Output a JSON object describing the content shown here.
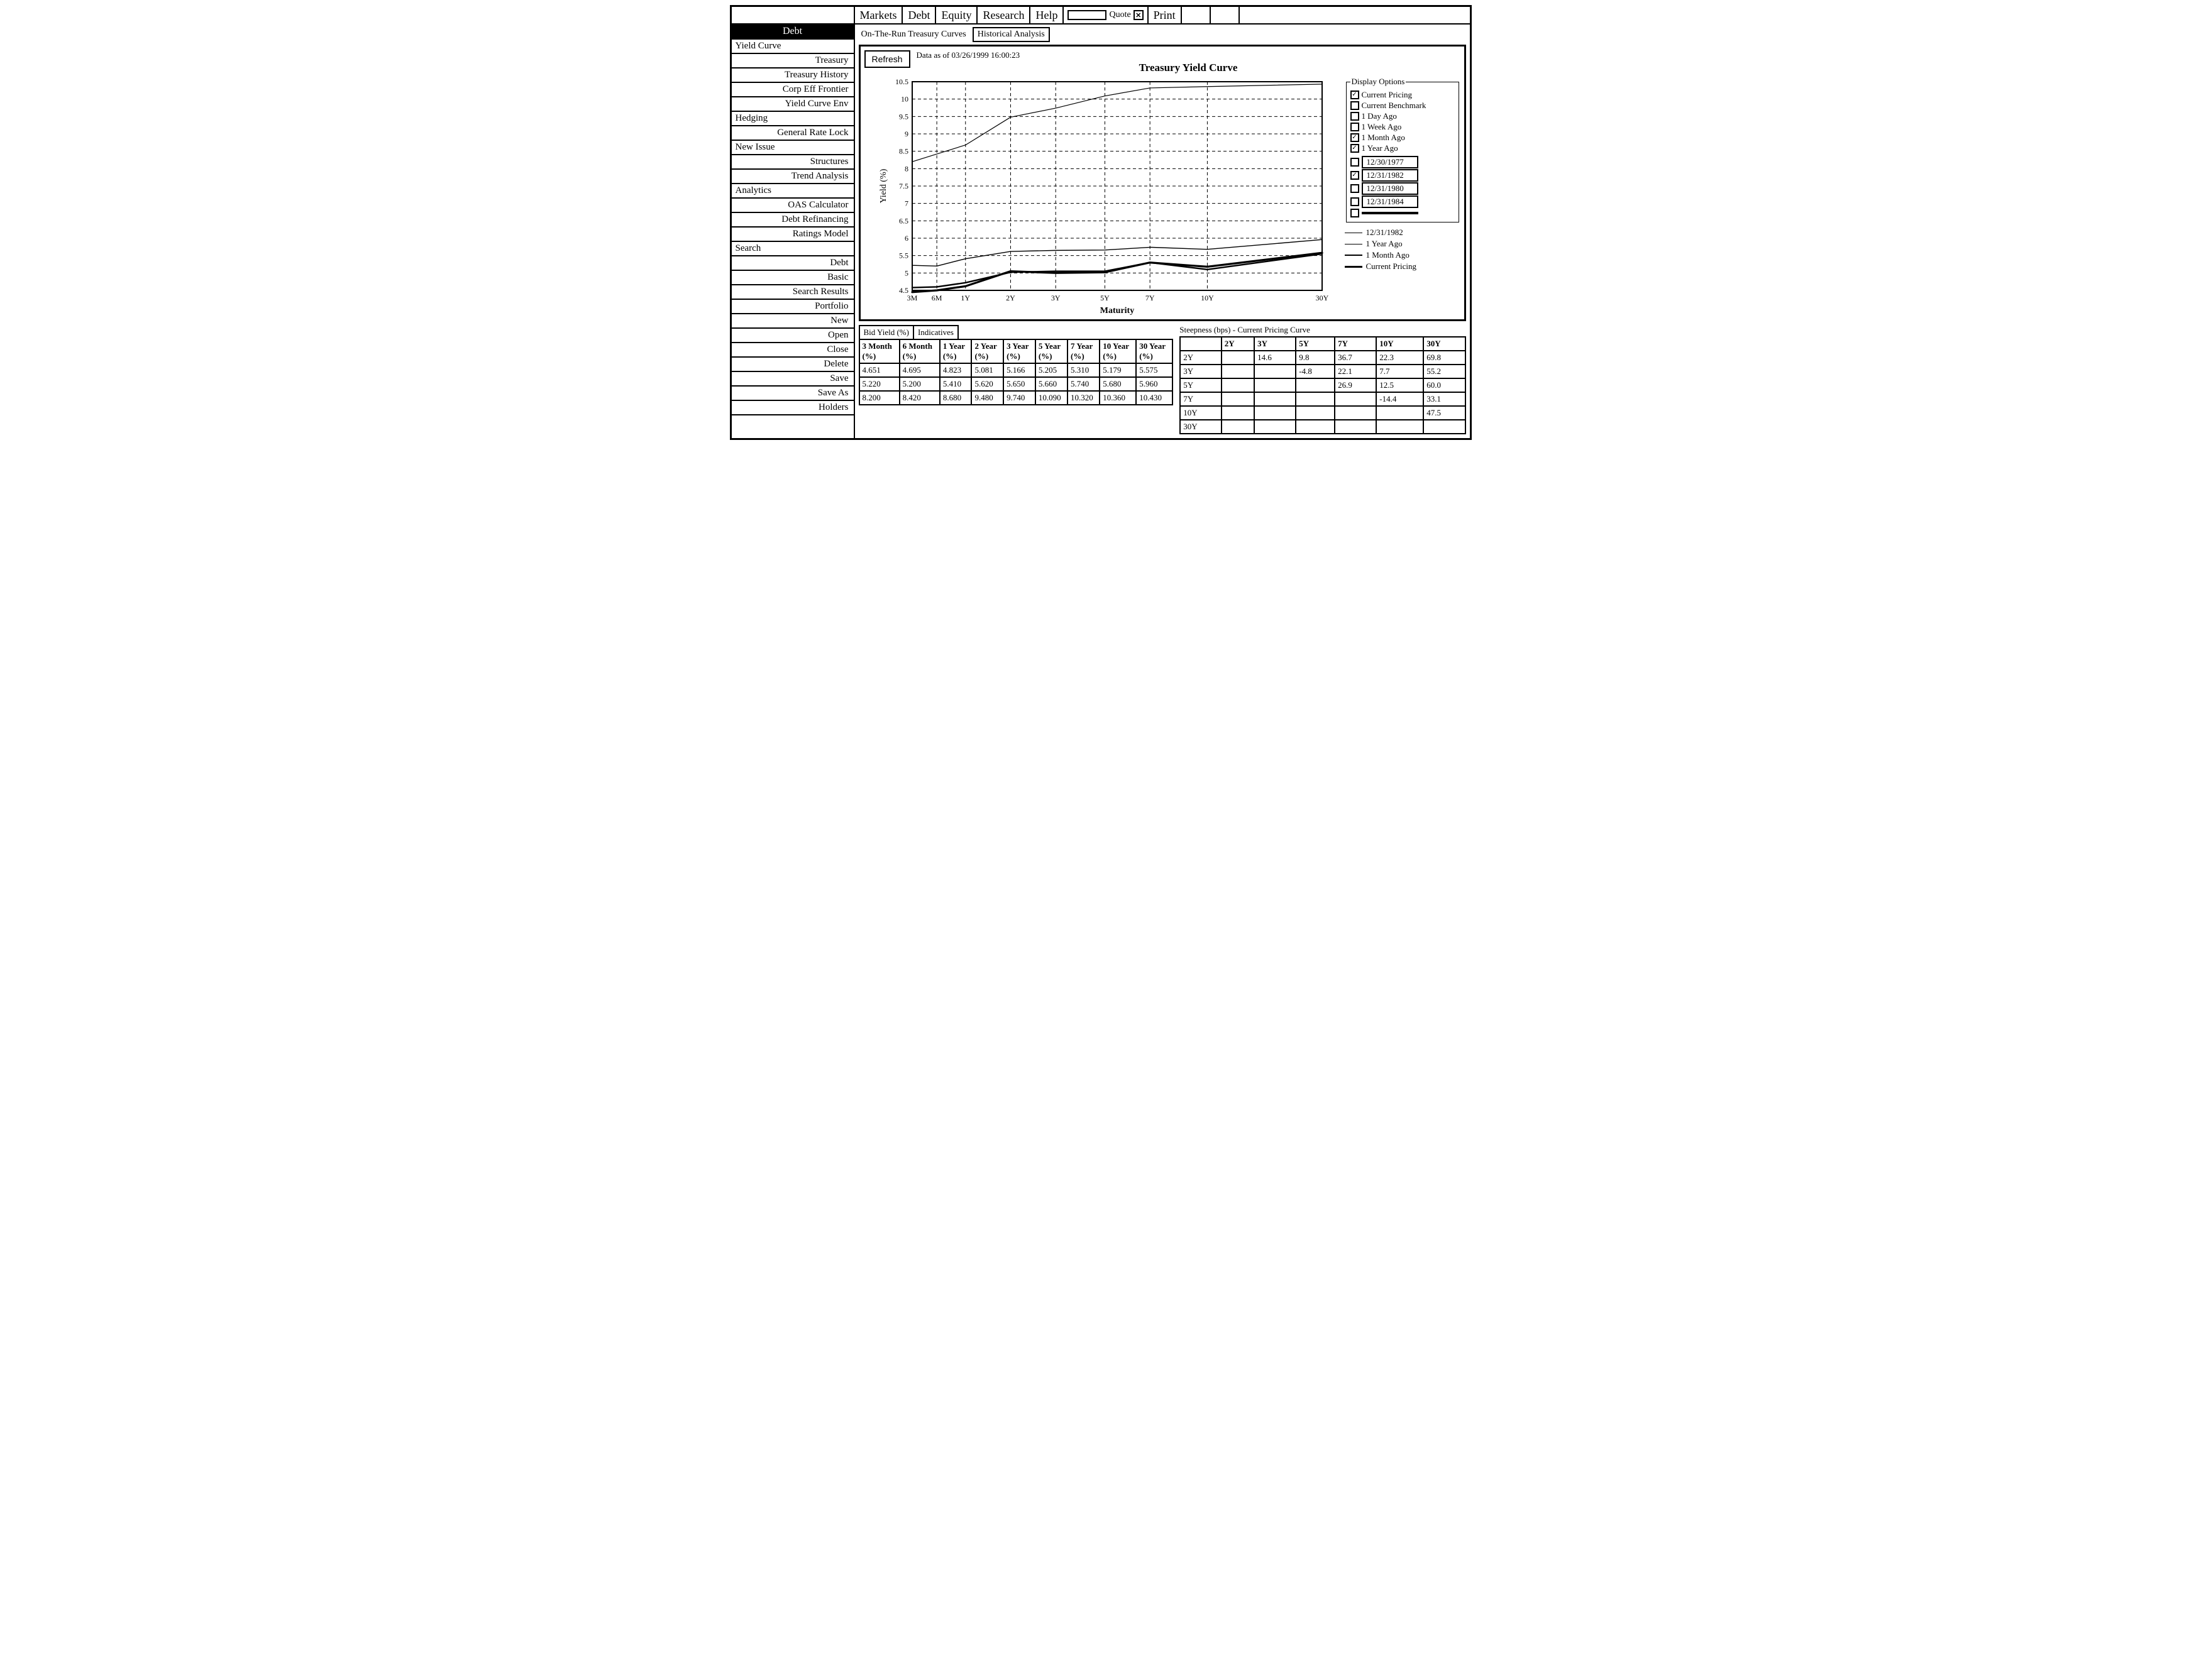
{
  "menubar": {
    "items": [
      "Markets",
      "Debt",
      "Equity",
      "Research",
      "Help"
    ],
    "quote_label": "Quote",
    "print_label": "Print"
  },
  "sidebar": {
    "title": "Debt",
    "entries": [
      {
        "type": "group",
        "label": "Yield Curve"
      },
      {
        "type": "item",
        "label": "Treasury"
      },
      {
        "type": "item",
        "label": "Treasury History"
      },
      {
        "type": "item",
        "label": "Corp Eff Frontier"
      },
      {
        "type": "item",
        "label": "Yield Curve Env"
      },
      {
        "type": "group",
        "label": "Hedging"
      },
      {
        "type": "item",
        "label": "General Rate Lock"
      },
      {
        "type": "group",
        "label": "New Issue"
      },
      {
        "type": "item",
        "label": "Structures"
      },
      {
        "type": "item",
        "label": "Trend Analysis"
      },
      {
        "type": "group",
        "label": "Analytics"
      },
      {
        "type": "item",
        "label": "OAS Calculator"
      },
      {
        "type": "item",
        "label": "Debt Refinancing"
      },
      {
        "type": "item",
        "label": "Ratings Model"
      },
      {
        "type": "group",
        "label": "Search"
      },
      {
        "type": "item",
        "label": "Debt"
      },
      {
        "type": "item",
        "label": "Basic"
      },
      {
        "type": "item",
        "label": "Search Results"
      },
      {
        "type": "item",
        "label": "Portfolio"
      },
      {
        "type": "item",
        "label": "New"
      },
      {
        "type": "item",
        "label": "Open"
      },
      {
        "type": "item",
        "label": "Close"
      },
      {
        "type": "item",
        "label": "Delete"
      },
      {
        "type": "item",
        "label": "Save"
      },
      {
        "type": "item",
        "label": "Save As"
      },
      {
        "type": "item",
        "label": "Holders"
      }
    ]
  },
  "subtabs": {
    "active": "On-The-Run Treasury Curves",
    "secondary": "Historical Analysis"
  },
  "chart": {
    "refresh_label": "Refresh",
    "as_of": "Data as of 03/26/1999  16:00:23",
    "title": "Treasury Yield Curve",
    "y_label": "Yield (%)",
    "x_label": "Maturity",
    "y_ticks": [
      10.5,
      10,
      9.5,
      9,
      8.5,
      8,
      7.5,
      7,
      6.5,
      6,
      5.5,
      5,
      4.5
    ],
    "y_min": 4.5,
    "y_max": 10.5,
    "x_ticks": [
      "3M",
      "6M",
      "1Y",
      "2Y",
      "3Y",
      "5Y",
      "7Y",
      "10Y",
      "30Y"
    ],
    "x_positions": [
      0,
      0.06,
      0.13,
      0.24,
      0.35,
      0.47,
      0.58,
      0.72,
      1.0
    ],
    "series": [
      {
        "name": "12/31/1982",
        "width": 1.2,
        "y": [
          8.2,
          8.42,
          8.68,
          9.48,
          9.74,
          10.09,
          10.32,
          10.36,
          10.43
        ]
      },
      {
        "name": "1 Year Ago",
        "width": 1.4,
        "y": [
          5.22,
          5.2,
          5.41,
          5.62,
          5.65,
          5.66,
          5.74,
          5.68,
          5.96
        ]
      },
      {
        "name": "1 Month Ago",
        "width": 2.4,
        "y": [
          4.58,
          4.6,
          4.72,
          5.02,
          5.05,
          5.05,
          5.3,
          5.1,
          5.55
        ]
      },
      {
        "name": "Current Pricing",
        "width": 3.2,
        "y": [
          4.45,
          4.5,
          4.62,
          5.05,
          5.0,
          5.02,
          5.3,
          5.18,
          5.58
        ]
      }
    ],
    "grid_color": "#000000",
    "bg_color": "#ffffff",
    "line_color": "#000000"
  },
  "display_options": {
    "title": "Display Options",
    "checks": [
      {
        "label": "Current Pricing",
        "checked": true
      },
      {
        "label": "Current Benchmark",
        "checked": false
      },
      {
        "label": "1 Day Ago",
        "checked": false
      },
      {
        "label": "1 Week Ago",
        "checked": false
      },
      {
        "label": "1 Month Ago",
        "checked": true
      },
      {
        "label": "1 Year Ago",
        "checked": true
      }
    ],
    "dates": [
      {
        "label": "12/30/1977",
        "checked": false
      },
      {
        "label": "12/31/1982",
        "checked": true
      },
      {
        "label": "12/31/1980",
        "checked": false
      },
      {
        "label": "12/31/1984",
        "checked": false
      },
      {
        "label": "",
        "checked": false
      }
    ],
    "legend": [
      {
        "label": "12/31/1982",
        "width": 1.2
      },
      {
        "label": "1 Year Ago",
        "width": 1.4
      },
      {
        "label": "1 Month Ago",
        "width": 2.4
      },
      {
        "label": "Current Pricing",
        "width": 3.2
      }
    ]
  },
  "bid_table": {
    "tab1": "Bid Yield (%)",
    "tab2": "Indicatives",
    "columns": [
      "3 Month (%)",
      "6 Month (%)",
      "1 Year (%)",
      "2 Year (%)",
      "3 Year (%)",
      "5 Year (%)",
      "7 Year (%)",
      "10 Year (%)",
      "30 Year (%)"
    ],
    "rows": [
      [
        "4.651",
        "4.695",
        "4.823",
        "5.081",
        "5.166",
        "5.205",
        "5.310",
        "5.179",
        "5.575"
      ],
      [
        "5.220",
        "5.200",
        "5.410",
        "5.620",
        "5.650",
        "5.660",
        "5.740",
        "5.680",
        "5.960"
      ],
      [
        "8.200",
        "8.420",
        "8.680",
        "9.480",
        "9.740",
        "10.090",
        "10.320",
        "10.360",
        "10.430"
      ]
    ]
  },
  "steepness": {
    "title": "Steepness (bps)  -  Current Pricing Curve",
    "cols": [
      "",
      "2Y",
      "3Y",
      "5Y",
      "7Y",
      "10Y",
      "30Y"
    ],
    "rows": [
      [
        "2Y",
        "",
        "14.6",
        "9.8",
        "36.7",
        "22.3",
        "69.8"
      ],
      [
        "3Y",
        "",
        "",
        "-4.8",
        "22.1",
        "7.7",
        "55.2"
      ],
      [
        "5Y",
        "",
        "",
        "",
        "26.9",
        "12.5",
        "60.0"
      ],
      [
        "7Y",
        "",
        "",
        "",
        "",
        "-14.4",
        "33.1"
      ],
      [
        "10Y",
        "",
        "",
        "",
        "",
        "",
        "47.5"
      ],
      [
        "30Y",
        "",
        "",
        "",
        "",
        "",
        ""
      ]
    ]
  }
}
